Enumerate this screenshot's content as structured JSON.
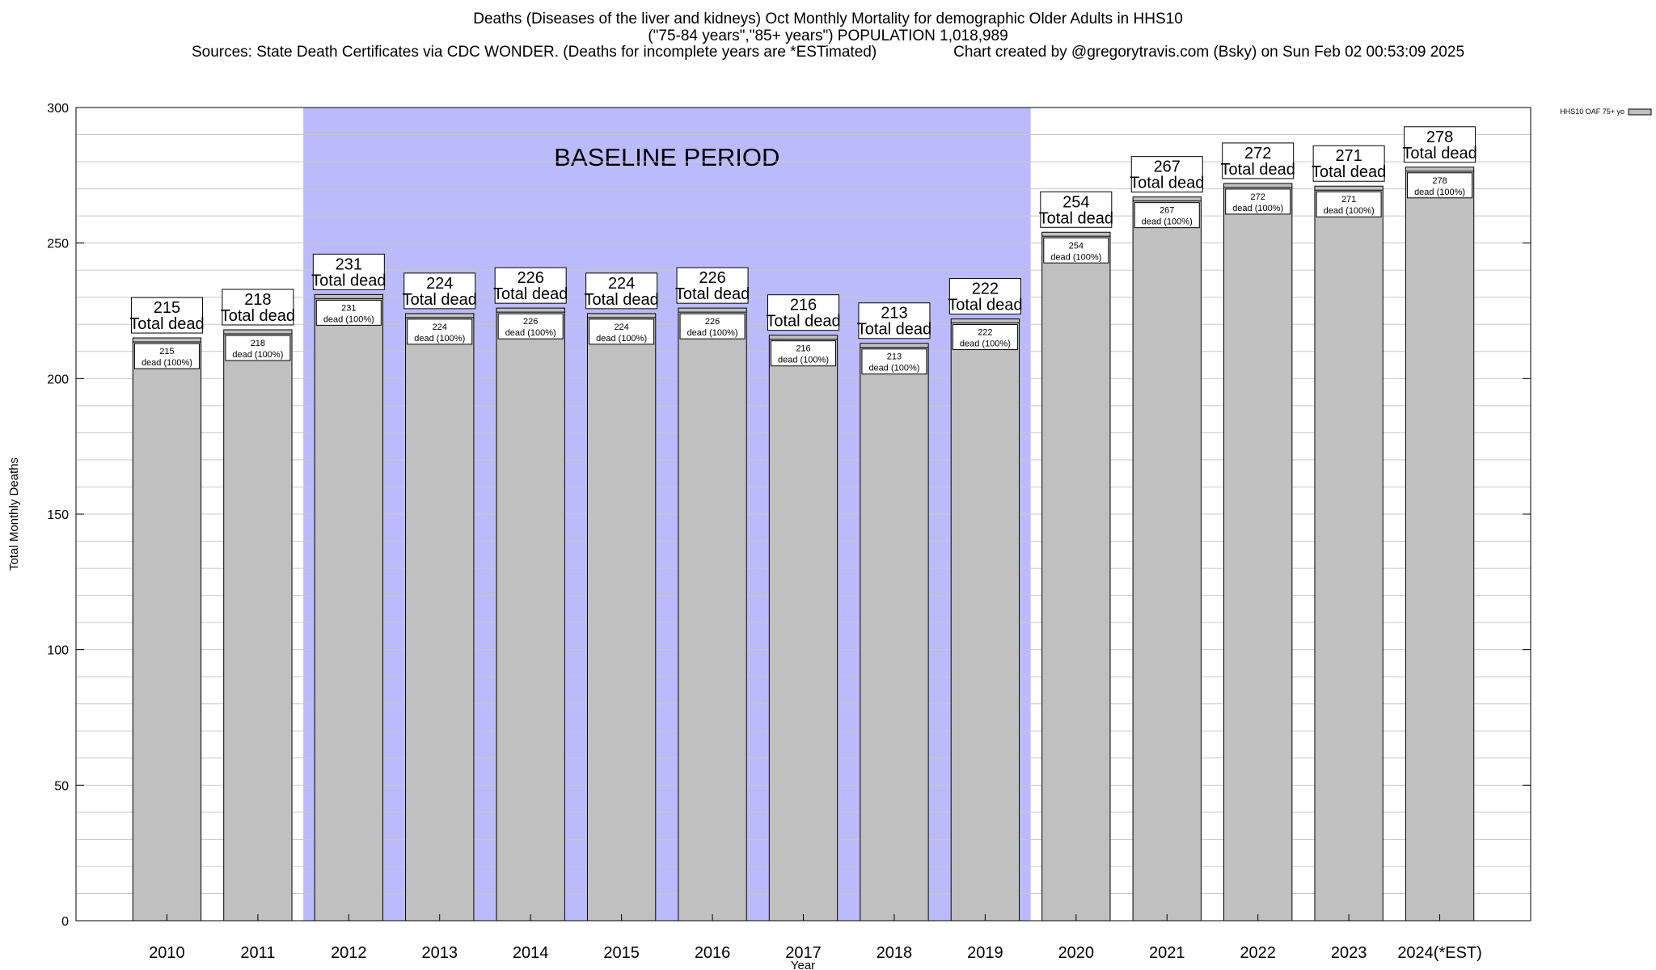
{
  "chart_data": {
    "type": "bar",
    "title": "Deaths (Diseases of the liver and kidneys) Oct Monthly Mortality for demographic Older Adults in HHS10",
    "subtitle": "(\"75-84 years\",\"85+ years\") POPULATION 1,018,989",
    "sources": "Sources: State Death Certificates via CDC WONDER. (Deaths for incomplete years are *ESTimated)",
    "credit": "Chart created by @gregorytravis.com (Bsky) on Sun Feb 02 00:53:09 2025",
    "xlabel": "Year",
    "ylabel": "Total Monthly Deaths",
    "ylim": [
      0,
      300
    ],
    "yticks": [
      0,
      50,
      100,
      150,
      200,
      250,
      300
    ],
    "grid": true,
    "legend": {
      "placement": "top-right",
      "entries": [
        "HHS10 OAF 75+ yo"
      ]
    },
    "categories": [
      "2010",
      "2011",
      "2012",
      "2013",
      "2014",
      "2015",
      "2016",
      "2017",
      "2018",
      "2019",
      "2020",
      "2021",
      "2022",
      "2023",
      "2024(*EST)"
    ],
    "series": [
      {
        "name": "HHS10 OAF 75+ yo",
        "values": [
          215,
          218,
          231,
          224,
          226,
          224,
          226,
          216,
          213,
          222,
          254,
          267,
          272,
          271,
          278
        ],
        "labels": [
          "215\ndead (100%)",
          "218\ndead (100%)",
          "231\ndead (100%)",
          "224\ndead (100%)",
          "226\ndead (100%)",
          "224\ndead (100%)",
          "226\ndead (100%)",
          "216\ndead (100%)",
          "213\ndead (100%)",
          "222\ndead (100%)",
          "254\ndead (100%)",
          "267\ndead (100%)",
          "272\ndead (100%)",
          "271\ndead (100%)",
          "278\ndead (100%)"
        ]
      }
    ],
    "total_label_suffix": "Total dead",
    "shaded_region": {
      "label": "BASELINE PERIOD",
      "from": "2012",
      "to": "2019"
    },
    "colors": {
      "bar": "#c0c0c0",
      "baseline": "#bbbbfb"
    }
  }
}
